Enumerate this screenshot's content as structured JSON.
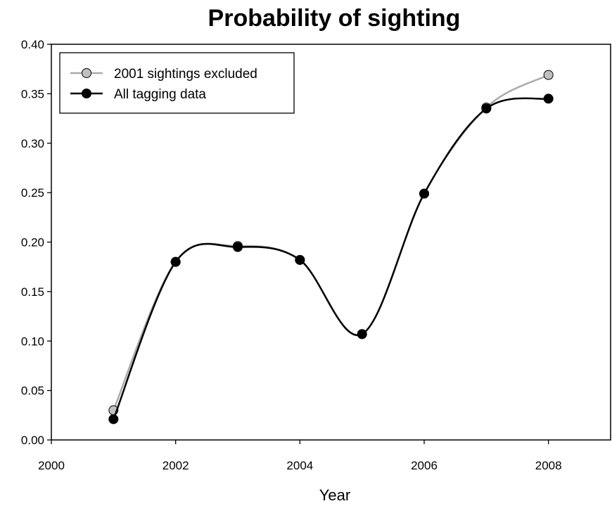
{
  "chart_data": {
    "type": "line",
    "title": "Probability of sighting",
    "xlabel": "Year",
    "ylabel": "",
    "xlim": [
      2000,
      2009
    ],
    "ylim": [
      0,
      0.4
    ],
    "x_ticks": [
      2000,
      2002,
      2004,
      2006,
      2008
    ],
    "x_tick_labels": [
      "2000",
      "2002",
      "2004",
      "2006",
      "2008"
    ],
    "y_ticks": [
      0,
      0.05,
      0.1,
      0.15,
      0.2,
      0.25,
      0.3,
      0.35,
      0.4
    ],
    "y_tick_labels": [
      "0.00",
      "0.05",
      "0.10",
      "0.15",
      "0.20",
      "0.25",
      "0.30",
      "0.35",
      "0.40"
    ],
    "grid": false,
    "legend_position": "top-left",
    "series": [
      {
        "name": "2001 sightings excluded",
        "color": "#aaaaaa",
        "marker_fill": "#c0c0c0",
        "x": [
          2001,
          2002,
          2003,
          2004,
          2005,
          2006,
          2007,
          2008
        ],
        "y": [
          0.03,
          0.18,
          0.196,
          0.182,
          0.107,
          0.249,
          0.336,
          0.369
        ]
      },
      {
        "name": "All tagging data",
        "color": "#000000",
        "marker_fill": "#000000",
        "x": [
          2001,
          2002,
          2003,
          2004,
          2005,
          2006,
          2007,
          2008
        ],
        "y": [
          0.021,
          0.18,
          0.195,
          0.182,
          0.107,
          0.249,
          0.335,
          0.345
        ]
      }
    ]
  }
}
